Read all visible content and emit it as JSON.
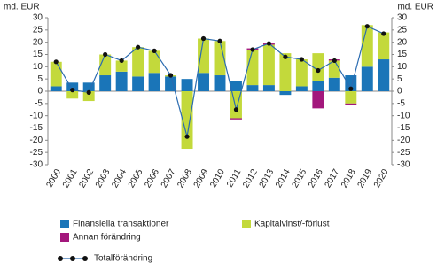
{
  "chart_data": {
    "type": "bar",
    "stacked": true,
    "y_label": "md. EUR",
    "y2_label": "md. EUR",
    "categories": [
      "2000",
      "2001",
      "2002",
      "2003",
      "2004",
      "2005",
      "2006",
      "2007",
      "2008",
      "2009",
      "2010",
      "2011",
      "2012",
      "2013",
      "2014",
      "2015",
      "2016",
      "2017",
      "2018",
      "2019",
      "2020"
    ],
    "series": [
      {
        "name": "Finansiella transaktioner",
        "type": "bar",
        "color": "#1a75b8",
        "values": [
          2,
          3.5,
          3.5,
          6.5,
          8,
          6,
          7.5,
          6,
          5,
          7.5,
          6.5,
          4,
          2.5,
          2.5,
          -1.5,
          2,
          4,
          5.5,
          6.5,
          10,
          13
        ]
      },
      {
        "name": "Kapitalvinst/-förlust",
        "type": "bar",
        "color": "#c3d93b",
        "values": [
          10,
          -3,
          -4,
          8.5,
          4.5,
          12,
          9,
          0.5,
          -23.5,
          14,
          14,
          -11,
          14.5,
          16.5,
          15.5,
          11,
          11.5,
          7,
          -5,
          17,
          11
        ]
      },
      {
        "name": "Annan förändring",
        "type": "bar",
        "color": "#a3177c",
        "values": [
          0,
          0,
          0,
          0,
          0,
          0,
          0,
          0,
          0,
          0,
          0,
          -0.5,
          0.5,
          0.5,
          0,
          0,
          -7,
          0.5,
          -0.5,
          0,
          0
        ]
      },
      {
        "name": "Totalförändring",
        "type": "line",
        "color": "#2a6bb0",
        "marker_color": "#111111",
        "values": [
          12,
          0.5,
          -0.5,
          15,
          12.5,
          18,
          16.5,
          6.5,
          -18.5,
          21.5,
          20.5,
          -7.5,
          17,
          19.5,
          14,
          13,
          8.5,
          12.5,
          1,
          26.5,
          23.5
        ]
      }
    ],
    "ylim": [
      -30,
      30
    ],
    "yticks": [
      -30,
      -25,
      -20,
      -15,
      -10,
      -5,
      0,
      5,
      10,
      15,
      20,
      25,
      30
    ],
    "y2lim": [
      -30,
      30
    ],
    "y2ticks": [
      -30,
      -25,
      -20,
      -15,
      -10,
      -5,
      0,
      5,
      10,
      15,
      20,
      25,
      30
    ]
  }
}
